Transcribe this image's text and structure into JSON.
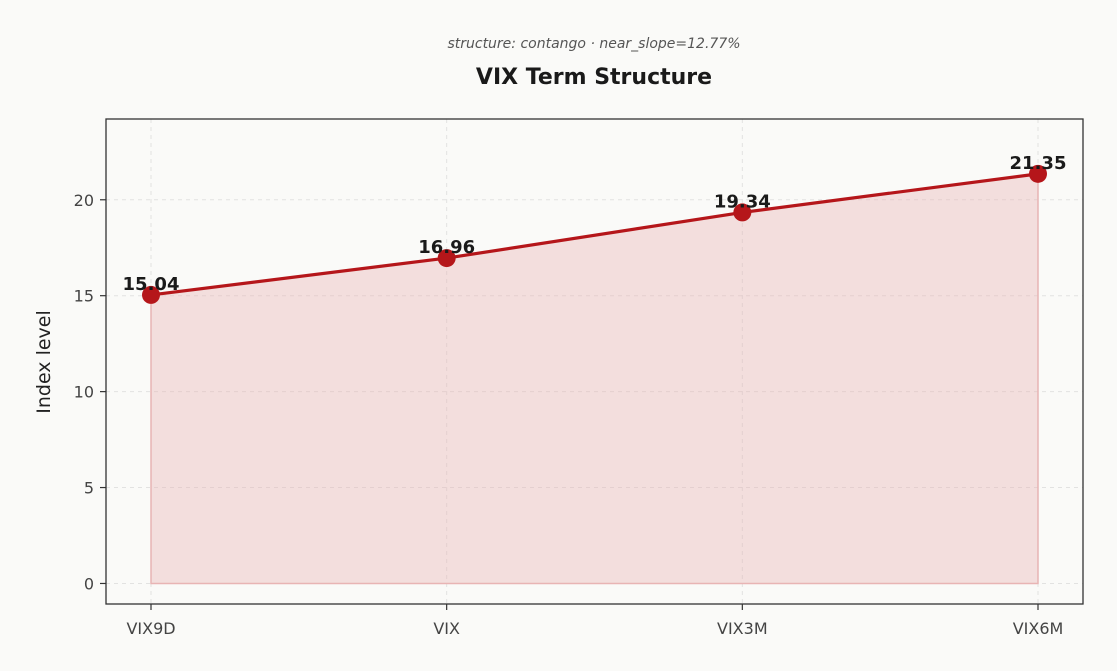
{
  "chart_data": {
    "type": "line",
    "subtitle": "structure: contango · near_slope=12.77%",
    "title": "VIX Term Structure",
    "xlabel": "",
    "ylabel": "Index level",
    "categories": [
      "VIX9D",
      "VIX",
      "VIX3M",
      "VIX6M"
    ],
    "series": [
      {
        "values": [
          15.04,
          16.96,
          19.34,
          21.35
        ]
      }
    ],
    "data_labels": [
      "15.04",
      "16.96",
      "19.34",
      "21.35"
    ],
    "y_ticks": [
      0,
      5,
      10,
      15,
      20
    ],
    "y_tick_labels": [
      "0",
      "5",
      "10",
      "15",
      "20"
    ],
    "ylim": [
      -1.07,
      24.21
    ],
    "grid": true,
    "area_fill": true,
    "legend": "none",
    "colors": {
      "line": "#b5161a",
      "marker": "#b5161a",
      "fill": "#e8b4b4",
      "background": "#fafaf8"
    }
  }
}
